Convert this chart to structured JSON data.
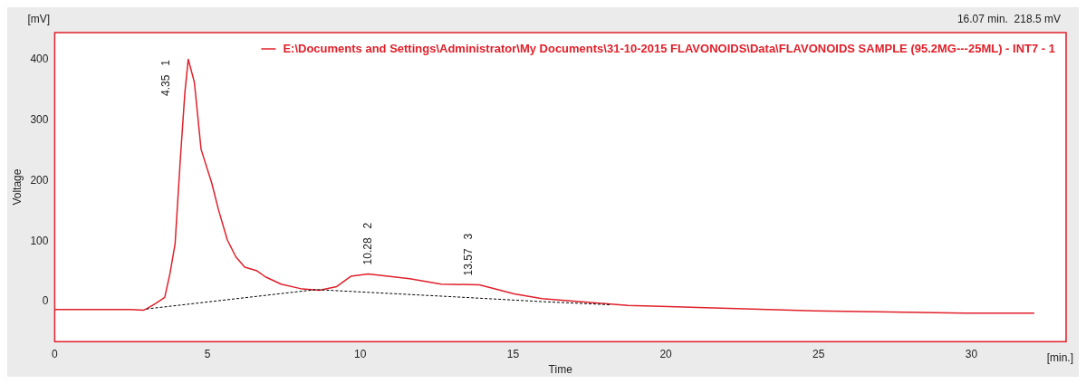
{
  "chart_data": {
    "type": "line",
    "xlabel": "Time",
    "ylabel": "Voltage",
    "xlim": [
      0,
      33.1
    ],
    "ylim": [
      -66,
      445
    ],
    "xticks": [
      0,
      5,
      10,
      15,
      20,
      25,
      30
    ],
    "yticks": [
      0,
      100,
      200,
      300,
      400
    ],
    "grid": false,
    "legend": "top right",
    "marker": "none",
    "series": [
      {
        "name": "E:\\Documents and Settings\\Administrator\\My Documents\\31-10-2015 FLAVONOIDS\\Data\\FLAVONOIDS SAMPLE (95.2MG---25ML) - INT7 - 1",
        "color": "#e0202a",
        "line_style": "solid",
        "x": [
          0,
          2.46,
          2.9,
          3.0,
          3.3,
          3.6,
          3.77,
          3.94,
          4.11,
          4.26,
          4.37,
          4.57,
          4.79,
          5.14,
          5.36,
          5.65,
          5.93,
          6.22,
          6.62,
          6.9,
          7.41,
          8.1,
          8.66,
          9.23,
          9.69,
          10.26,
          11.62,
          12.65,
          13.9,
          15.04,
          15.95,
          18.76,
          24.86,
          29.8,
          32.06
        ],
        "values": [
          -13,
          -13,
          -14,
          -12,
          -3,
          7,
          46,
          96,
          235,
          346,
          401,
          363,
          252,
          196,
          152,
          102,
          74,
          57,
          51,
          41,
          29,
          21,
          19,
          25,
          42,
          46,
          38,
          29,
          28,
          13,
          5,
          -6,
          -15,
          -19,
          -19
        ]
      },
      {
        "color": "#000000",
        "line_style": "dashed",
        "x": [
          3.0,
          8.55,
          13.1,
          16,
          18.2
        ],
        "values": [
          -12,
          20,
          8,
          0,
          -5
        ]
      }
    ],
    "annotations": [
      "16.07 min.  218.5 mV",
      "[mV]",
      "[min.]",
      {
        "text": "4.35   1",
        "x": 4.37,
        "y": 401
      },
      {
        "text": "10.28   2",
        "x": 10.26,
        "y": 46
      },
      {
        "text": "13.57   3",
        "x": 13.57,
        "y": 28
      }
    ]
  }
}
